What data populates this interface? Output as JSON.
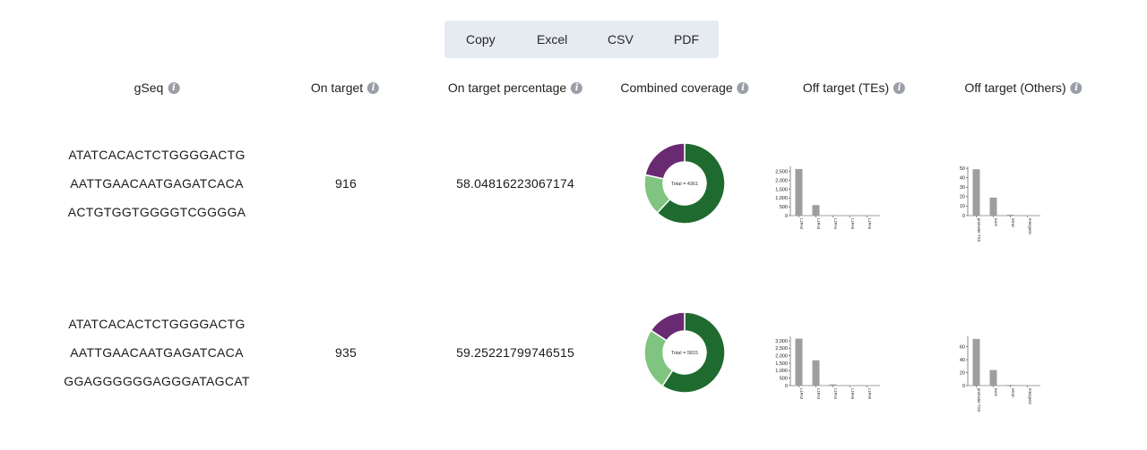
{
  "toolbar": {
    "copy": "Copy",
    "excel": "Excel",
    "csv": "CSV",
    "pdf": "PDF"
  },
  "columns": {
    "gseq": "gSeq",
    "on_target": "On target",
    "on_target_pct": "On target percentage",
    "combined_coverage": "Combined coverage",
    "off_target_tes": "Off target (TEs)",
    "off_target_others": "Off target (Others)"
  },
  "info_icon": "i",
  "rows": [
    {
      "gseq": [
        "ATATCACACTCTGGGGACTG",
        "AATTGAACAATGAGATCACA",
        "ACTGTGGTGGGGTCGGGGA"
      ],
      "on_target": "916",
      "on_target_pct": "58.04816223067174"
    },
    {
      "gseq": [
        "ATATCACACTCTGGGGACTG",
        "AATTGAACAATGAGATCACA",
        "GGAGGGGGGAGGGATAGCAT"
      ],
      "on_target": "935",
      "on_target_pct": "59.25221799746515"
    }
  ],
  "chart_data": [
    {
      "type": "pie",
      "donut": true,
      "center_label": "Total = 4361",
      "slices": [
        {
          "value": 2700,
          "color": "#1f6b2f"
        },
        {
          "value": 720,
          "color": "#7fc47f"
        },
        {
          "value": 941,
          "color": "#6a2a72"
        }
      ]
    },
    {
      "type": "bar",
      "categories": [
        "L1PA2",
        "L1PA3",
        "L1PA4",
        "L1PA5",
        "L1PA6"
      ],
      "values": [
        2650,
        600,
        20,
        5,
        3
      ],
      "yticks": [
        "0",
        "500",
        "1,000",
        "1,500",
        "2,000",
        "2,500"
      ],
      "ylim": [
        0,
        2800
      ],
      "color": "#9e9e9e"
    },
    {
      "type": "bar",
      "categories": [
        "promoter-TSS",
        "exon",
        "intron",
        "Intergenic"
      ],
      "values": [
        49,
        19,
        1,
        0
      ],
      "yticks": [
        "0",
        "10",
        "20",
        "30",
        "40",
        "50"
      ],
      "ylim": [
        0,
        52
      ],
      "color": "#9e9e9e"
    },
    {
      "type": "pie",
      "donut": true,
      "center_label": "Total = 5815",
      "slices": [
        {
          "value": 3450,
          "color": "#1f6b2f"
        },
        {
          "value": 1450,
          "color": "#7fc47f"
        },
        {
          "value": 915,
          "color": "#6a2a72"
        }
      ]
    },
    {
      "type": "bar",
      "categories": [
        "L1PA2",
        "L1PA3",
        "L1PA4",
        "L1PA5",
        "L1PA6"
      ],
      "values": [
        3150,
        1700,
        80,
        10,
        5
      ],
      "yticks": [
        "0",
        "500",
        "1,000",
        "1,500",
        "2,000",
        "2,500",
        "3,000"
      ],
      "ylim": [
        0,
        3300
      ],
      "color": "#9e9e9e"
    },
    {
      "type": "bar",
      "categories": [
        "promoter-TSS",
        "exon",
        "intron",
        "Intergenic"
      ],
      "values": [
        72,
        24,
        1,
        0
      ],
      "yticks": [
        "0",
        "20",
        "40",
        "60"
      ],
      "ylim": [
        0,
        76
      ],
      "color": "#9e9e9e"
    }
  ]
}
